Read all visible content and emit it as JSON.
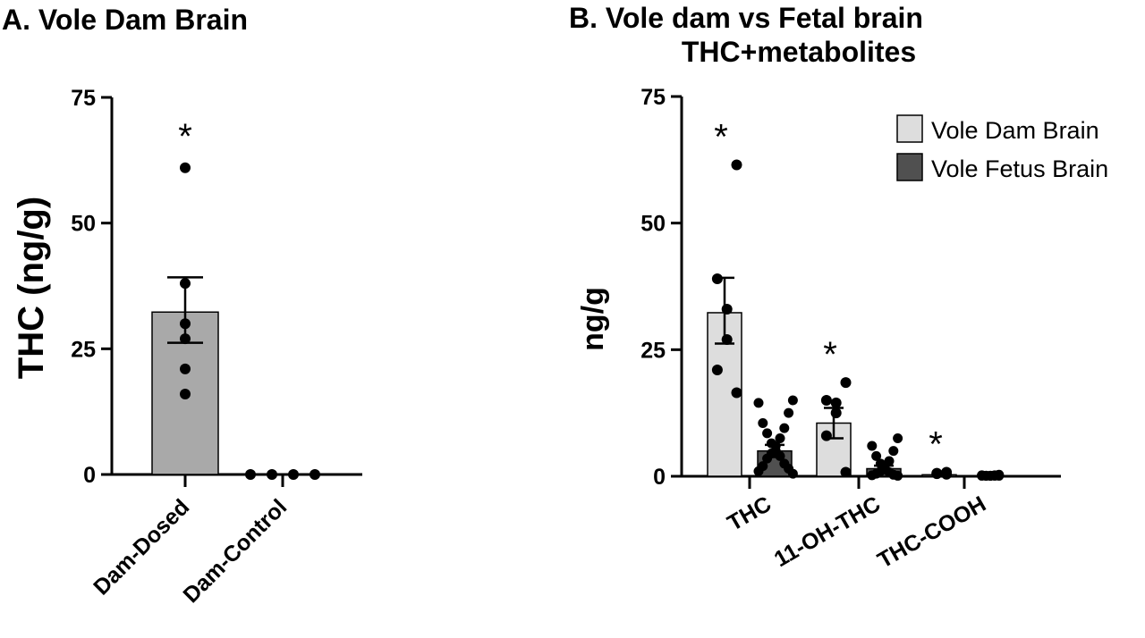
{
  "chart_data": [
    {
      "type": "bar",
      "title": "A. Vole Dam Brain",
      "ylabel": "THC (ng/g)",
      "ylim": [
        0,
        75
      ],
      "yticks": [
        "0",
        "25",
        "50",
        "75"
      ],
      "categories": [
        "Dam-Dosed",
        "Dam-Control"
      ],
      "bars": [
        {
          "mean": 32.3,
          "sem_low": 26.2,
          "sem_high": 39.2,
          "color": "#a9a9a9"
        },
        {
          "mean": 0,
          "sem_low": 0,
          "sem_high": 0,
          "color": "#a9a9a9"
        }
      ],
      "points": [
        [
          61.0,
          38.0,
          30.0,
          27.0,
          21.0,
          16.0
        ],
        [
          0,
          0,
          0,
          0
        ]
      ],
      "annotations": [
        "*",
        ""
      ]
    },
    {
      "type": "bar",
      "title": "B. Vole dam vs Fetal brain",
      "subtitle": "THC+metabolites",
      "ylabel": "ng/g",
      "ylim": [
        0,
        75
      ],
      "yticks": [
        "0",
        "25",
        "50",
        "75"
      ],
      "categories": [
        "THC",
        "11-OH-THC",
        "THC-COOH"
      ],
      "legend_position": "top-right",
      "series": [
        {
          "name": "Vole Dam Brain",
          "color": "#dddddd",
          "values": [
            32.3,
            10.5,
            0.3
          ],
          "sem_low": [
            26.2,
            7.5,
            0.1
          ],
          "sem_high": [
            39.2,
            13.5,
            0.5
          ],
          "points": [
            [
              61.5,
              39.0,
              33.0,
              27.0,
              21.0,
              16.5
            ],
            [
              18.5,
              15.0,
              14.5,
              12.5,
              8.0,
              0.8
            ],
            [
              0.8,
              0.6,
              0.5,
              0.4
            ]
          ]
        },
        {
          "name": "Vole Fetus Brain",
          "color": "#505050",
          "values": [
            5.0,
            1.5,
            0.1
          ],
          "sem_low": [
            3.8,
            0.9,
            0.05
          ],
          "sem_high": [
            6.2,
            2.1,
            0.15
          ],
          "points": [
            [
              15.0,
              14.5,
              12.5,
              10.5,
              9.5,
              8.5,
              7.5,
              6.5,
              6.0,
              5.0,
              4.5,
              4.0,
              3.5,
              2.5,
              2.0,
              1.5,
              1.0,
              0.5
            ],
            [
              7.5,
              6.0,
              5.0,
              4.0,
              3.0,
              2.5,
              2.0,
              1.5,
              1.0,
              0.8,
              0.5,
              0.3,
              0.2,
              0.1
            ],
            [
              0.3,
              0.2,
              0.2,
              0.1,
              0.1,
              0.1,
              0.1,
              0.1,
              0.1,
              0.1
            ]
          ]
        }
      ],
      "annotations": [
        "*",
        "*",
        "*"
      ]
    }
  ]
}
